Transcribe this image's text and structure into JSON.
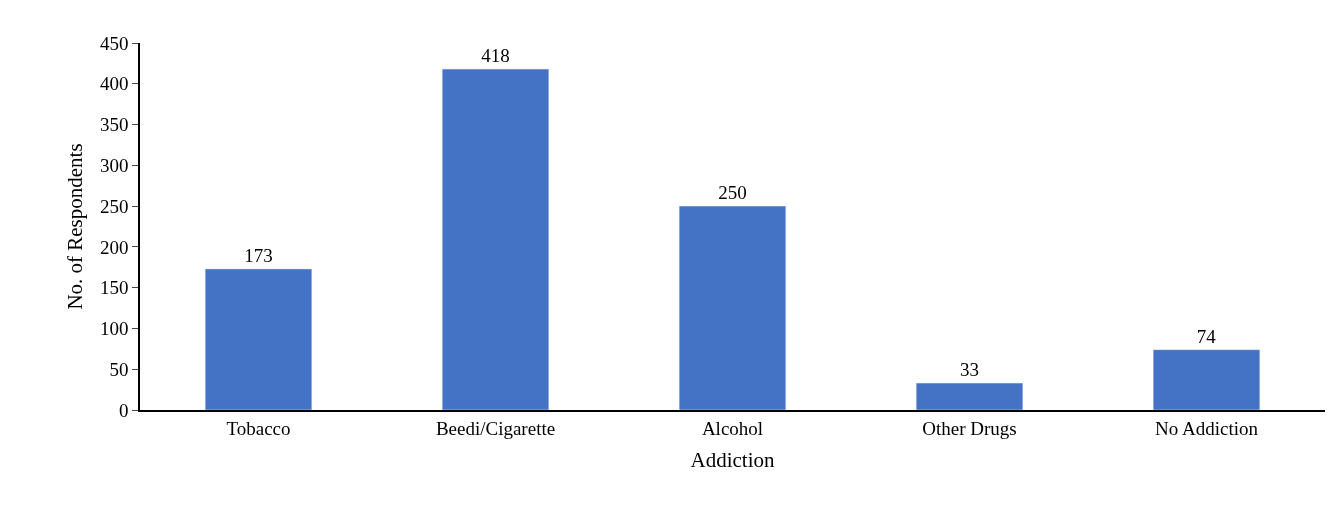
{
  "chart_data": {
    "type": "bar",
    "xlabel": "Addiction",
    "ylabel": "No. of Respondents",
    "categories": [
      "Tobacco",
      "Beedi/Cigarette",
      "Alcohol",
      "Other Drugs",
      "No Addiction"
    ],
    "values": [
      173,
      418,
      250,
      33,
      74
    ],
    "color": "#4472c4",
    "ylim": [
      0,
      450
    ],
    "yticks": [
      0,
      50,
      100,
      150,
      200,
      250,
      300,
      350,
      400,
      450
    ],
    "data_labels": true,
    "grid": false
  }
}
